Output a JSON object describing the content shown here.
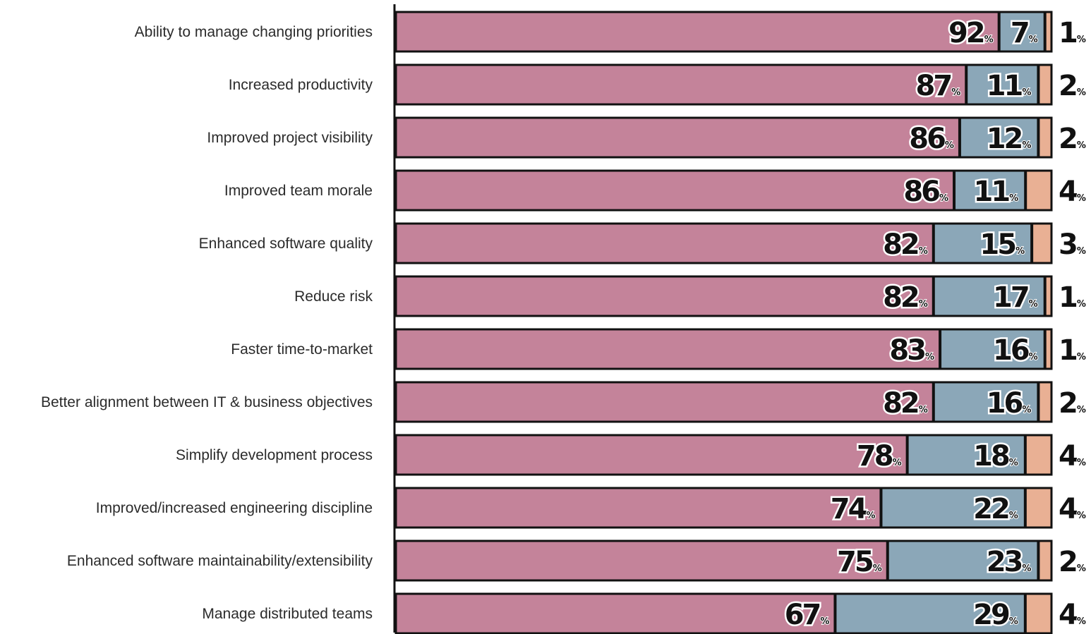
{
  "chart_data": {
    "type": "bar",
    "orientation": "horizontal",
    "stacked": true,
    "title": "",
    "xlabel": "",
    "ylabel": "",
    "xlim": [
      0,
      100
    ],
    "unit": "%",
    "grid": false,
    "legend": "none",
    "categories": [
      "Ability to manage changing priorities",
      "Increased productivity",
      "Improved project visibility",
      "Improved team morale",
      "Enhanced software quality",
      "Reduce risk",
      "Faster time-to-market",
      "Better alignment between IT & business objectives",
      "Simplify development process",
      "Improved/increased engineering discipline",
      "Enhanced software maintainability/extensibility",
      "Manage distributed teams"
    ],
    "series": [
      {
        "values": [
          92,
          87,
          86,
          86,
          82,
          82,
          83,
          82,
          78,
          74,
          75,
          67
        ]
      },
      {
        "values": [
          7,
          11,
          12,
          11,
          15,
          17,
          16,
          16,
          18,
          22,
          23,
          29
        ]
      },
      {
        "values": [
          1,
          2,
          2,
          4,
          3,
          1,
          1,
          2,
          4,
          4,
          2,
          4
        ]
      }
    ],
    "colors": [
      "#c4839a",
      "#8ba7b8",
      "#e9b094"
    ]
  }
}
